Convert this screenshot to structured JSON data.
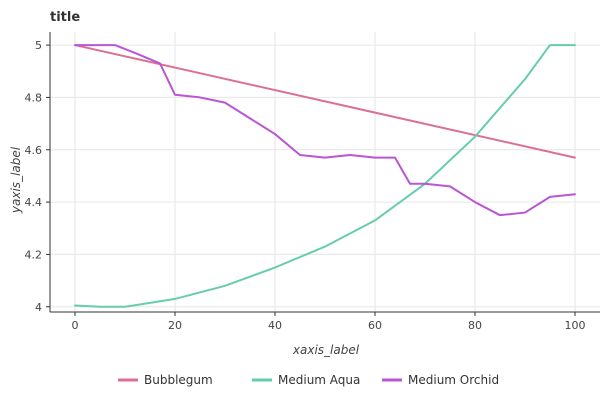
{
  "chart_data": {
    "type": "line",
    "title": "title",
    "xlabel": "xaxis_label",
    "ylabel": "yaxis_label",
    "xlim": [
      -5,
      105
    ],
    "ylim": [
      3.98,
      5.05
    ],
    "xticks": [
      0,
      20,
      40,
      60,
      80,
      100
    ],
    "yticks": [
      4.0,
      4.2,
      4.4,
      4.6,
      4.8,
      5.0
    ],
    "xtick_labels": [
      "0",
      "20",
      "40",
      "60",
      "80",
      "100"
    ],
    "ytick_labels": [
      "4",
      "4.2",
      "4.4",
      "4.6",
      "4.8",
      "5"
    ],
    "grid": true,
    "legend_position": "bottom",
    "series": [
      {
        "name": "Bubblegum",
        "color": "#db7093",
        "x": [
          0,
          100
        ],
        "y": [
          5.0,
          4.57
        ]
      },
      {
        "name": "Medium Aqua",
        "color": "#66cdaa",
        "x": [
          0,
          5,
          10,
          20,
          30,
          40,
          50,
          60,
          70,
          80,
          90,
          95,
          100
        ],
        "y": [
          4.005,
          4.0,
          4.0,
          4.03,
          4.08,
          4.15,
          4.23,
          4.33,
          4.47,
          4.65,
          4.87,
          5.0,
          5.0
        ]
      },
      {
        "name": "Medium Orchid",
        "color": "#ba55d3",
        "x": [
          0,
          8,
          12,
          17,
          20,
          25,
          30,
          35,
          40,
          45,
          50,
          55,
          60,
          64,
          67,
          70,
          75,
          80,
          85,
          90,
          95,
          100
        ],
        "y": [
          5.0,
          5.0,
          4.97,
          4.93,
          4.81,
          4.8,
          4.78,
          4.72,
          4.66,
          4.58,
          4.57,
          4.58,
          4.57,
          4.57,
          4.47,
          4.47,
          4.46,
          4.4,
          4.35,
          4.36,
          4.42,
          4.43
        ]
      }
    ]
  }
}
